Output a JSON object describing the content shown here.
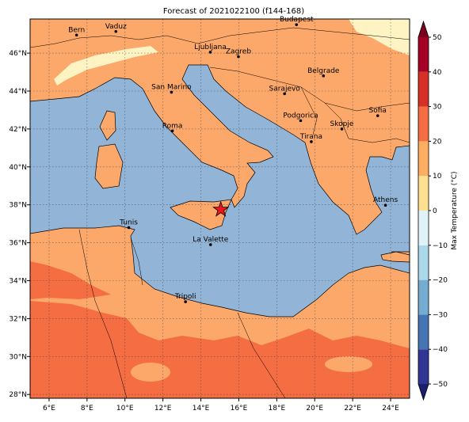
{
  "title": "Forecast of 2021022100 (f144-168)",
  "map": {
    "lon_ticks": [
      {
        "value": 6,
        "label": "6°E"
      },
      {
        "value": 8,
        "label": "8°E"
      },
      {
        "value": 10,
        "label": "10°E"
      },
      {
        "value": 12,
        "label": "12°E"
      },
      {
        "value": 14,
        "label": "14°E"
      },
      {
        "value": 16,
        "label": "16°E"
      },
      {
        "value": 18,
        "label": "18°E"
      },
      {
        "value": 20,
        "label": "20°E"
      },
      {
        "value": 22,
        "label": "22°E"
      },
      {
        "value": 24,
        "label": "24°E"
      }
    ],
    "lat_ticks": [
      {
        "value": 28,
        "label": "28°N"
      },
      {
        "value": 30,
        "label": "30°N"
      },
      {
        "value": 32,
        "label": "32°N"
      },
      {
        "value": 34,
        "label": "34°N"
      },
      {
        "value": 36,
        "label": "36°N"
      },
      {
        "value": 38,
        "label": "38°N"
      },
      {
        "value": 40,
        "label": "40°N"
      },
      {
        "value": 42,
        "label": "42°N"
      },
      {
        "value": 44,
        "label": "44°N"
      },
      {
        "value": 46,
        "label": "46°N"
      }
    ],
    "cities": [
      "Bern",
      "Vaduz",
      "Budapest",
      "Ljubljana",
      "Zagreb",
      "Belgrade",
      "San Marino",
      "Sarajevo",
      "Sofia",
      "Podgorica",
      "Skopje",
      "Roma",
      "Tirana",
      "Athens",
      "Tunis",
      "La Valette",
      "Tripoli"
    ]
  },
  "colorbar": {
    "label": "Max Temperature (°C)",
    "ticks": [
      {
        "value": -50,
        "label": "−50"
      },
      {
        "value": -40,
        "label": "−40"
      },
      {
        "value": -30,
        "label": "−30"
      },
      {
        "value": -20,
        "label": "−20"
      },
      {
        "value": -10,
        "label": "−10"
      },
      0,
      10,
      20,
      30,
      40,
      50
    ],
    "colors": [
      "#313695",
      "#4575b4",
      "#74add1",
      "#abd9e9",
      "#e0f3f8",
      "#fee090",
      "#fdae61",
      "#f46d43",
      "#d73027",
      "#a50026"
    ],
    "under_color": "#1a1f6e",
    "over_color": "#7a0020"
  }
}
